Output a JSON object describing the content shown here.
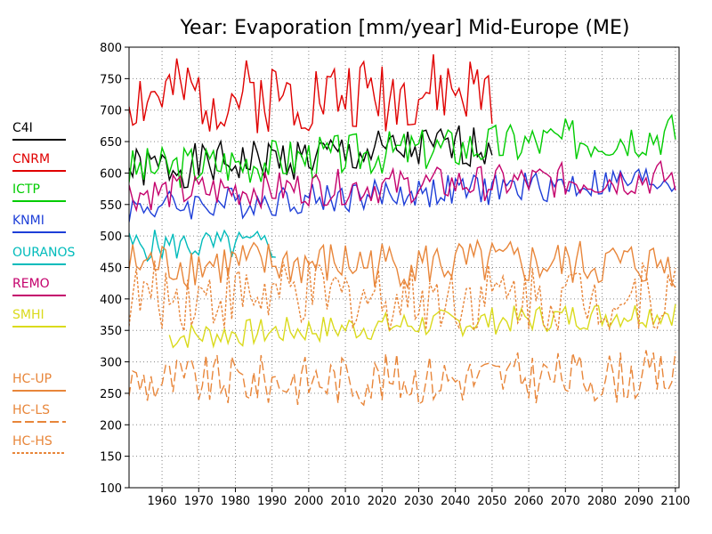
{
  "chart_data": {
    "type": "line",
    "title": "Year: Evaporation [mm/year] Mid-Europe (ME)",
    "xlabel": "",
    "ylabel": "",
    "xlim": [
      1951,
      2101
    ],
    "ylim": [
      100,
      800
    ],
    "xticks": [
      1960,
      1970,
      1980,
      1990,
      2000,
      2010,
      2020,
      2030,
      2040,
      2050,
      2060,
      2070,
      2080,
      2090,
      2100
    ],
    "yticks": [
      100,
      150,
      200,
      250,
      300,
      350,
      400,
      450,
      500,
      550,
      600,
      650,
      700,
      750,
      800
    ],
    "grid": true,
    "legend_position": "left",
    "series": [
      {
        "name": "C4I",
        "color": "#000000",
        "dash": "solid",
        "x_start": 1951,
        "x_end": 2050,
        "mean": 605,
        "amp": 22,
        "trend": 40,
        "seed": 1
      },
      {
        "name": "CNRM",
        "color": "#e00000",
        "dash": "solid",
        "x_start": 1951,
        "x_end": 2050,
        "mean": 720,
        "amp": 38,
        "trend": 10,
        "seed": 2
      },
      {
        "name": "ICTP",
        "color": "#00cc00",
        "dash": "solid",
        "x_start": 1951,
        "x_end": 2100,
        "mean": 605,
        "amp": 22,
        "trend": 60,
        "seed": 3
      },
      {
        "name": "KNMI",
        "color": "#1e3fd8",
        "dash": "solid",
        "x_start": 1951,
        "x_end": 2100,
        "mean": 545,
        "amp": 16,
        "trend": 45,
        "seed": 4
      },
      {
        "name": "OURANOS",
        "color": "#00bbbb",
        "dash": "solid",
        "x_start": 1951,
        "x_end": 1991,
        "mean": 485,
        "amp": 16,
        "trend": 0,
        "seed": 5
      },
      {
        "name": "REMO",
        "color": "#c4006c",
        "dash": "solid",
        "x_start": 1951,
        "x_end": 2100,
        "mean": 568,
        "amp": 18,
        "trend": 25,
        "seed": 6
      },
      {
        "name": "SMHI",
        "color": "#dada1c",
        "dash": "solid",
        "x_start": 1962,
        "x_end": 2100,
        "mean": 340,
        "amp": 14,
        "trend": 40,
        "seed": 7
      },
      {
        "name": "HC-UP",
        "color": "#e8863a",
        "dash": "solid",
        "x_start": 1951,
        "x_end": 2100,
        "mean": 455,
        "amp": 24,
        "trend": 0,
        "seed": 8
      },
      {
        "name": "HC-LS",
        "color": "#e8863a",
        "dash": "long-dash",
        "x_start": 1951,
        "x_end": 2100,
        "mean": 268,
        "amp": 26,
        "trend": 10,
        "seed": 9
      },
      {
        "name": "HC-HS",
        "color": "#e8863a",
        "dash": "short-dash",
        "x_start": 1951,
        "x_end": 2100,
        "mean": 405,
        "amp": 35,
        "trend": 0,
        "seed": 10
      }
    ]
  }
}
